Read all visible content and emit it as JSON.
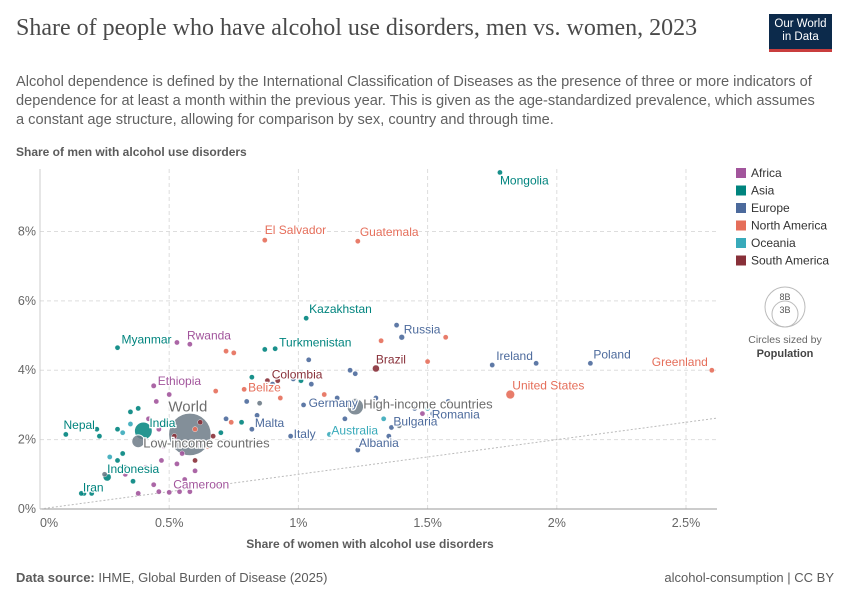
{
  "title": "Share of people who have alcohol use disorders, men vs. women, 2023",
  "subtitle": "Alcohol dependence is defined by the International Classification of Diseases as the presence of three or more indicators of dependence for at least a month within the previous year. This is given as the age-standardized prevalence, which assumes a constant age structure, allowing for comparison by sex, country and through time.",
  "logo": {
    "line1": "Our World",
    "line2": "in Data"
  },
  "footer": {
    "source_label": "Data source:",
    "source_text": "IHME, Global Burden of Disease (2025)",
    "right_text": "alcohol-consumption | CC BY"
  },
  "size_legend": {
    "big": "8B",
    "small": "3B",
    "caption1": "Circles sized by",
    "caption2": "Population"
  },
  "colors": {
    "Africa": "#a2559c",
    "Asia": "#00847e",
    "Europe": "#4c6a9c",
    "North America": "#e56e5a",
    "Oceania": "#38aaba",
    "South America": "#883039",
    "World": "#6d7b87"
  },
  "chart_data": {
    "type": "scatter",
    "xlabel": "Share of women with alcohol use disorders",
    "ylabel": "Share of men with alcohol use disorders",
    "xlim": [
      0,
      2.62
    ],
    "ylim": [
      0,
      9.8
    ],
    "x_ticks": [
      0,
      0.5,
      1,
      1.5,
      2,
      2.5
    ],
    "x_tick_labels": [
      "0%",
      "0.5%",
      "1%",
      "1.5%",
      "2%",
      "2.5%"
    ],
    "y_ticks": [
      0,
      2,
      4,
      6,
      8
    ],
    "y_tick_labels": [
      "0%",
      "2%",
      "4%",
      "6%",
      "8%"
    ],
    "legend": [
      "Africa",
      "Asia",
      "Europe",
      "North America",
      "Oceania",
      "South America"
    ],
    "labeled_points": [
      {
        "name": "Mongolia",
        "region": "Asia",
        "x": 1.78,
        "y": 9.7,
        "pop": 0.003
      },
      {
        "name": "El Salvador",
        "region": "North America",
        "x": 0.87,
        "y": 7.75,
        "pop": 0.006
      },
      {
        "name": "Guatemala",
        "region": "North America",
        "x": 1.23,
        "y": 7.72,
        "pop": 0.018
      },
      {
        "name": "Kazakhstan",
        "region": "Asia",
        "x": 1.03,
        "y": 5.5,
        "pop": 0.02
      },
      {
        "name": "Russia",
        "region": "Europe",
        "x": 1.4,
        "y": 4.95,
        "pop": 0.144
      },
      {
        "name": "Myanmar",
        "region": "Asia",
        "x": 0.3,
        "y": 4.65,
        "pop": 0.054
      },
      {
        "name": "Rwanda",
        "region": "Africa",
        "x": 0.53,
        "y": 4.8,
        "pop": 0.014
      },
      {
        "name": "Turkmenistan",
        "region": "Asia",
        "x": 0.91,
        "y": 4.62,
        "pop": 0.007
      },
      {
        "name": "Brazil",
        "region": "South America",
        "x": 1.3,
        "y": 4.05,
        "pop": 0.216
      },
      {
        "name": "Ireland",
        "region": "Europe",
        "x": 1.75,
        "y": 4.15,
        "pop": 0.005
      },
      {
        "name": "Poland",
        "region": "Europe",
        "x": 2.13,
        "y": 4.2,
        "pop": 0.037
      },
      {
        "name": "Greenland",
        "region": "North America",
        "x": 2.6,
        "y": 4.0,
        "pop": 0.0001
      },
      {
        "name": "Colombia",
        "region": "South America",
        "x": 0.92,
        "y": 3.7,
        "pop": 0.052
      },
      {
        "name": "Ethiopia",
        "region": "Africa",
        "x": 0.44,
        "y": 3.55,
        "pop": 0.126
      },
      {
        "name": "United States",
        "region": "North America",
        "x": 1.82,
        "y": 3.3,
        "pop": 0.335
      },
      {
        "name": "Belize",
        "region": "North America",
        "x": 0.79,
        "y": 3.45,
        "pop": 0.0004
      },
      {
        "name": "High-income countries",
        "region": "World",
        "x": 1.22,
        "y": 2.95,
        "pop": 1.24
      },
      {
        "name": "Germany",
        "region": "Europe",
        "x": 1.02,
        "y": 3.0,
        "pop": 0.084
      },
      {
        "name": "World",
        "region": "World",
        "x": 0.58,
        "y": 2.15,
        "pop": 8.06
      },
      {
        "name": "Romania",
        "region": "Europe",
        "x": 1.52,
        "y": 2.75,
        "pop": 0.019
      },
      {
        "name": "India",
        "region": "Asia",
        "x": 0.4,
        "y": 2.25,
        "pop": 1.43
      },
      {
        "name": "Malta",
        "region": "Europe",
        "x": 0.82,
        "y": 2.3,
        "pop": 0.0005
      },
      {
        "name": "Bulgaria",
        "region": "Europe",
        "x": 1.36,
        "y": 2.35,
        "pop": 0.007
      },
      {
        "name": "Australia",
        "region": "Oceania",
        "x": 1.12,
        "y": 2.15,
        "pop": 0.026
      },
      {
        "name": "Italy",
        "region": "Europe",
        "x": 0.97,
        "y": 2.1,
        "pop": 0.059
      },
      {
        "name": "Nepal",
        "region": "Asia",
        "x": 0.22,
        "y": 2.3,
        "pop": 0.03
      },
      {
        "name": "Low-income countries",
        "region": "World",
        "x": 0.38,
        "y": 1.95,
        "pop": 0.74
      },
      {
        "name": "Albania",
        "region": "Europe",
        "x": 1.23,
        "y": 1.7,
        "pop": 0.003
      },
      {
        "name": "Indonesia",
        "region": "Asia",
        "x": 0.26,
        "y": 0.92,
        "pop": 0.277
      },
      {
        "name": "Iran",
        "region": "Asia",
        "x": 0.17,
        "y": 0.45,
        "pop": 0.089
      },
      {
        "name": "Cameroon",
        "region": "Africa",
        "x": 0.5,
        "y": 0.48,
        "pop": 0.028
      }
    ],
    "other_points": [
      {
        "region": "Africa",
        "x": 0.45,
        "y": 3.1,
        "pop": 0.03
      },
      {
        "region": "Africa",
        "x": 0.5,
        "y": 3.3,
        "pop": 0.02
      },
      {
        "region": "Africa",
        "x": 0.42,
        "y": 2.6,
        "pop": 0.05
      },
      {
        "region": "Africa",
        "x": 0.46,
        "y": 2.3,
        "pop": 0.04
      },
      {
        "region": "Africa",
        "x": 0.52,
        "y": 2.0,
        "pop": 0.06
      },
      {
        "region": "Africa",
        "x": 0.48,
        "y": 1.8,
        "pop": 0.03
      },
      {
        "region": "Africa",
        "x": 0.55,
        "y": 1.6,
        "pop": 0.02
      },
      {
        "region": "Africa",
        "x": 0.47,
        "y": 1.4,
        "pop": 0.04
      },
      {
        "region": "Africa",
        "x": 0.41,
        "y": 1.2,
        "pop": 0.02
      },
      {
        "region": "Africa",
        "x": 0.53,
        "y": 1.3,
        "pop": 0.05
      },
      {
        "region": "Africa",
        "x": 0.6,
        "y": 1.1,
        "pop": 0.03
      },
      {
        "region": "Africa",
        "x": 0.44,
        "y": 0.7,
        "pop": 0.02
      },
      {
        "region": "Africa",
        "x": 0.46,
        "y": 0.5,
        "pop": 0.03
      },
      {
        "region": "Africa",
        "x": 0.54,
        "y": 0.5,
        "pop": 0.02
      },
      {
        "region": "Africa",
        "x": 0.58,
        "y": 0.5,
        "pop": 0.02
      },
      {
        "region": "Africa",
        "x": 0.38,
        "y": 0.45,
        "pop": 0.02
      },
      {
        "region": "Africa",
        "x": 0.56,
        "y": 0.85,
        "pop": 0.02
      },
      {
        "region": "Africa",
        "x": 0.62,
        "y": 1.9,
        "pop": 0.02
      },
      {
        "region": "Africa",
        "x": 0.58,
        "y": 4.75,
        "pop": 0.02
      },
      {
        "region": "Africa",
        "x": 1.48,
        "y": 2.75,
        "pop": 0.006
      },
      {
        "region": "Africa",
        "x": 0.33,
        "y": 1.0,
        "pop": 0.02
      },
      {
        "region": "Asia",
        "x": 0.3,
        "y": 2.3,
        "pop": 0.05
      },
      {
        "region": "Asia",
        "x": 0.35,
        "y": 2.8,
        "pop": 0.02
      },
      {
        "region": "Asia",
        "x": 0.32,
        "y": 1.6,
        "pop": 0.05
      },
      {
        "region": "Asia",
        "x": 0.3,
        "y": 1.4,
        "pop": 0.04
      },
      {
        "region": "Asia",
        "x": 0.33,
        "y": 1.2,
        "pop": 0.02
      },
      {
        "region": "Asia",
        "x": 0.1,
        "y": 2.15,
        "pop": 0.01
      },
      {
        "region": "Asia",
        "x": 0.22,
        "y": 0.6,
        "pop": 0.02
      },
      {
        "region": "Asia",
        "x": 0.16,
        "y": 0.45,
        "pop": 0.02
      },
      {
        "region": "Asia",
        "x": 0.2,
        "y": 0.45,
        "pop": 0.01
      },
      {
        "region": "Asia",
        "x": 0.36,
        "y": 0.8,
        "pop": 0.01
      },
      {
        "region": "Asia",
        "x": 0.82,
        "y": 3.8,
        "pop": 0.02
      },
      {
        "region": "Asia",
        "x": 1.01,
        "y": 3.7,
        "pop": 0.01
      },
      {
        "region": "Asia",
        "x": 0.78,
        "y": 2.5,
        "pop": 0.02
      },
      {
        "region": "Asia",
        "x": 0.87,
        "y": 4.6,
        "pop": 0.01
      },
      {
        "region": "Asia",
        "x": 0.7,
        "y": 2.2,
        "pop": 0.02
      },
      {
        "region": "Asia",
        "x": 0.38,
        "y": 2.9,
        "pop": 0.01
      },
      {
        "region": "Asia",
        "x": 0.23,
        "y": 2.1,
        "pop": 0.01
      },
      {
        "region": "Europe",
        "x": 0.98,
        "y": 3.75,
        "pop": 0.01
      },
      {
        "region": "Europe",
        "x": 1.04,
        "y": 4.3,
        "pop": 0.01
      },
      {
        "region": "Europe",
        "x": 1.2,
        "y": 4.0,
        "pop": 0.01
      },
      {
        "region": "Europe",
        "x": 1.05,
        "y": 3.6,
        "pop": 0.01
      },
      {
        "region": "Europe",
        "x": 1.15,
        "y": 3.2,
        "pop": 0.01
      },
      {
        "region": "Europe",
        "x": 0.9,
        "y": 3.6,
        "pop": 0.01
      },
      {
        "region": "Europe",
        "x": 0.8,
        "y": 3.1,
        "pop": 0.01
      },
      {
        "region": "Europe",
        "x": 0.84,
        "y": 2.7,
        "pop": 0.01
      },
      {
        "region": "Europe",
        "x": 0.72,
        "y": 2.6,
        "pop": 0.01
      },
      {
        "region": "Europe",
        "x": 1.35,
        "y": 2.1,
        "pop": 0.01
      },
      {
        "region": "Europe",
        "x": 1.45,
        "y": 2.9,
        "pop": 0.01
      },
      {
        "region": "Europe",
        "x": 1.58,
        "y": 3.1,
        "pop": 0.01
      },
      {
        "region": "Europe",
        "x": 1.72,
        "y": 3.0,
        "pop": 0.01
      },
      {
        "region": "Europe",
        "x": 1.3,
        "y": 3.2,
        "pop": 0.01
      },
      {
        "region": "Europe",
        "x": 1.18,
        "y": 2.6,
        "pop": 0.01
      },
      {
        "region": "Europe",
        "x": 1.52,
        "y": 2.55,
        "pop": 0.01
      },
      {
        "region": "Europe",
        "x": 1.92,
        "y": 4.2,
        "pop": 0.01
      },
      {
        "region": "Europe",
        "x": 1.22,
        "y": 3.9,
        "pop": 0.01
      },
      {
        "region": "Europe",
        "x": 1.38,
        "y": 5.3,
        "pop": 0.01
      },
      {
        "region": "North America",
        "x": 0.72,
        "y": 4.55,
        "pop": 0.01
      },
      {
        "region": "North America",
        "x": 0.75,
        "y": 4.5,
        "pop": 0.01
      },
      {
        "region": "North America",
        "x": 1.32,
        "y": 4.85,
        "pop": 0.01
      },
      {
        "region": "North America",
        "x": 1.57,
        "y": 4.95,
        "pop": 0.01
      },
      {
        "region": "North America",
        "x": 1.5,
        "y": 4.25,
        "pop": 0.01
      },
      {
        "region": "North America",
        "x": 0.68,
        "y": 3.4,
        "pop": 0.01
      },
      {
        "region": "North America",
        "x": 0.74,
        "y": 2.5,
        "pop": 0.01
      },
      {
        "region": "North America",
        "x": 0.6,
        "y": 2.3,
        "pop": 0.01
      },
      {
        "region": "North America",
        "x": 0.93,
        "y": 3.2,
        "pop": 0.01
      },
      {
        "region": "North America",
        "x": 1.1,
        "y": 3.3,
        "pop": 0.01
      },
      {
        "region": "North America",
        "x": 0.65,
        "y": 1.8,
        "pop": 0.01
      },
      {
        "region": "Oceania",
        "x": 0.35,
        "y": 2.45,
        "pop": 0.01
      },
      {
        "region": "Oceania",
        "x": 0.32,
        "y": 2.2,
        "pop": 0.01
      },
      {
        "region": "Oceania",
        "x": 1.5,
        "y": 2.9,
        "pop": 0.01
      },
      {
        "region": "Oceania",
        "x": 0.27,
        "y": 1.5,
        "pop": 0.01
      },
      {
        "region": "Oceania",
        "x": 1.33,
        "y": 2.6,
        "pop": 0.01
      },
      {
        "region": "South America",
        "x": 0.88,
        "y": 3.7,
        "pop": 0.01
      },
      {
        "region": "South America",
        "x": 0.6,
        "y": 1.4,
        "pop": 0.01
      },
      {
        "region": "South America",
        "x": 0.67,
        "y": 2.1,
        "pop": 0.01
      },
      {
        "region": "South America",
        "x": 0.52,
        "y": 2.1,
        "pop": 0.01
      },
      {
        "region": "South America",
        "x": 0.62,
        "y": 2.5,
        "pop": 0.01
      },
      {
        "region": "World",
        "x": 1.39,
        "y": 2.4,
        "pop": 0.01
      },
      {
        "region": "World",
        "x": 1.7,
        "y": 2.95,
        "pop": 0.01
      },
      {
        "region": "World",
        "x": 0.85,
        "y": 3.05,
        "pop": 0.01
      },
      {
        "region": "World",
        "x": 0.25,
        "y": 1.0,
        "pop": 0.01
      }
    ]
  }
}
